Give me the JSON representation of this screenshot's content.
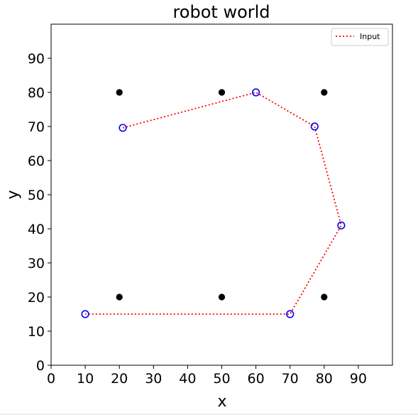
{
  "chart_data": {
    "type": "scatter",
    "title": "robot world",
    "xlabel": "x",
    "ylabel": "y",
    "xlim": [
      0,
      100
    ],
    "ylim": [
      0,
      100
    ],
    "xticks": [
      0,
      10,
      20,
      30,
      40,
      50,
      60,
      70,
      80,
      90
    ],
    "yticks": [
      0,
      10,
      20,
      30,
      40,
      50,
      60,
      70,
      80,
      90
    ],
    "grid": false,
    "legend": {
      "placement": "top-right",
      "entries": [
        "Input"
      ]
    },
    "landmarks": {
      "color": "#000000",
      "points": [
        [
          20,
          80
        ],
        [
          50,
          80
        ],
        [
          80,
          80
        ],
        [
          20,
          20
        ],
        [
          50,
          20
        ],
        [
          80,
          20
        ]
      ]
    },
    "series": [
      {
        "name": "Input",
        "line_style": "dotted",
        "line_color": "#ff0000",
        "marker_color": "#0000ff",
        "points": [
          [
            21,
            69.6
          ],
          [
            60,
            80
          ],
          [
            77.2,
            70
          ],
          [
            85,
            41
          ],
          [
            70,
            15
          ],
          [
            10,
            15
          ]
        ]
      }
    ]
  }
}
